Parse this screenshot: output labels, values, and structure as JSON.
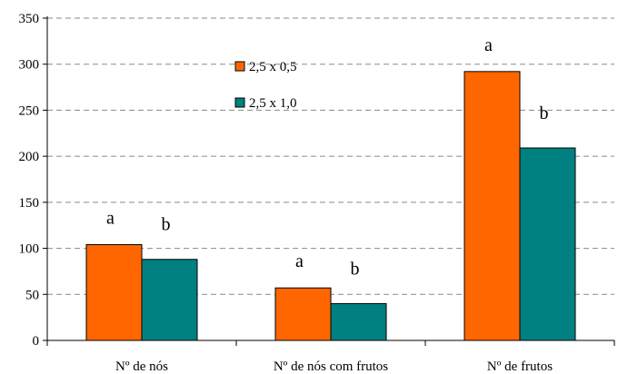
{
  "chart_data": {
    "type": "bar",
    "title": "",
    "xlabel": "",
    "ylabel": "",
    "ylim": [
      0,
      350
    ],
    "yticks": [
      0,
      50,
      100,
      150,
      200,
      250,
      300,
      350
    ],
    "grid": "dashed horizontal",
    "legend_position": "top-center",
    "categories": [
      "Nº de nós",
      "Nº de nós com frutos",
      "Nº de frutos"
    ],
    "series": [
      {
        "name": "2,5 x 0,5",
        "color": "#ff6600",
        "values": [
          104,
          57,
          292
        ],
        "letters": [
          "a",
          "a",
          "a"
        ]
      },
      {
        "name": "2,5 x 1,0",
        "color": "#008080",
        "values": [
          88,
          40,
          209
        ],
        "letters": [
          "b",
          "b",
          "b"
        ]
      }
    ]
  }
}
